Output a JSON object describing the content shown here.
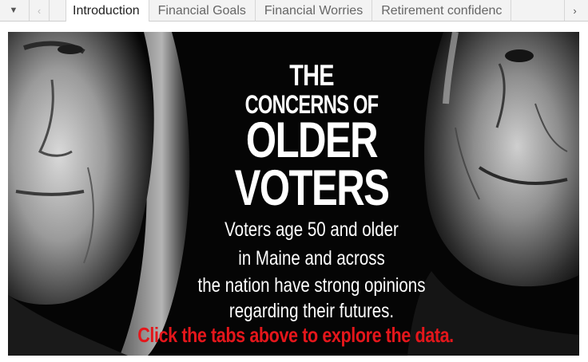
{
  "tabstrip": {
    "menu_icon": "caret-down-icon",
    "prev_icon": "chevron-left-icon",
    "next_icon": "chevron-right-icon",
    "tabs": [
      {
        "label": "Introduction",
        "active": true
      },
      {
        "label": "Financial Goals",
        "active": false
      },
      {
        "label": "Financial Worries",
        "active": false
      },
      {
        "label": "Retirement confidenc",
        "active": false
      }
    ]
  },
  "hero": {
    "headline": {
      "line1": "THE",
      "line2": "CONCERNS OF",
      "line3": "OLDER",
      "line4": "VOTERS"
    },
    "body": {
      "line1": "Voters age 50 and older",
      "line2": "in Maine and across",
      "line3": "the nation have strong opinions",
      "line4": "regarding their futures."
    },
    "cta": "Click the tabs above to explore the data.",
    "colors": {
      "background": "#050505",
      "text": "#ffffff",
      "cta": "#e4161b"
    }
  }
}
